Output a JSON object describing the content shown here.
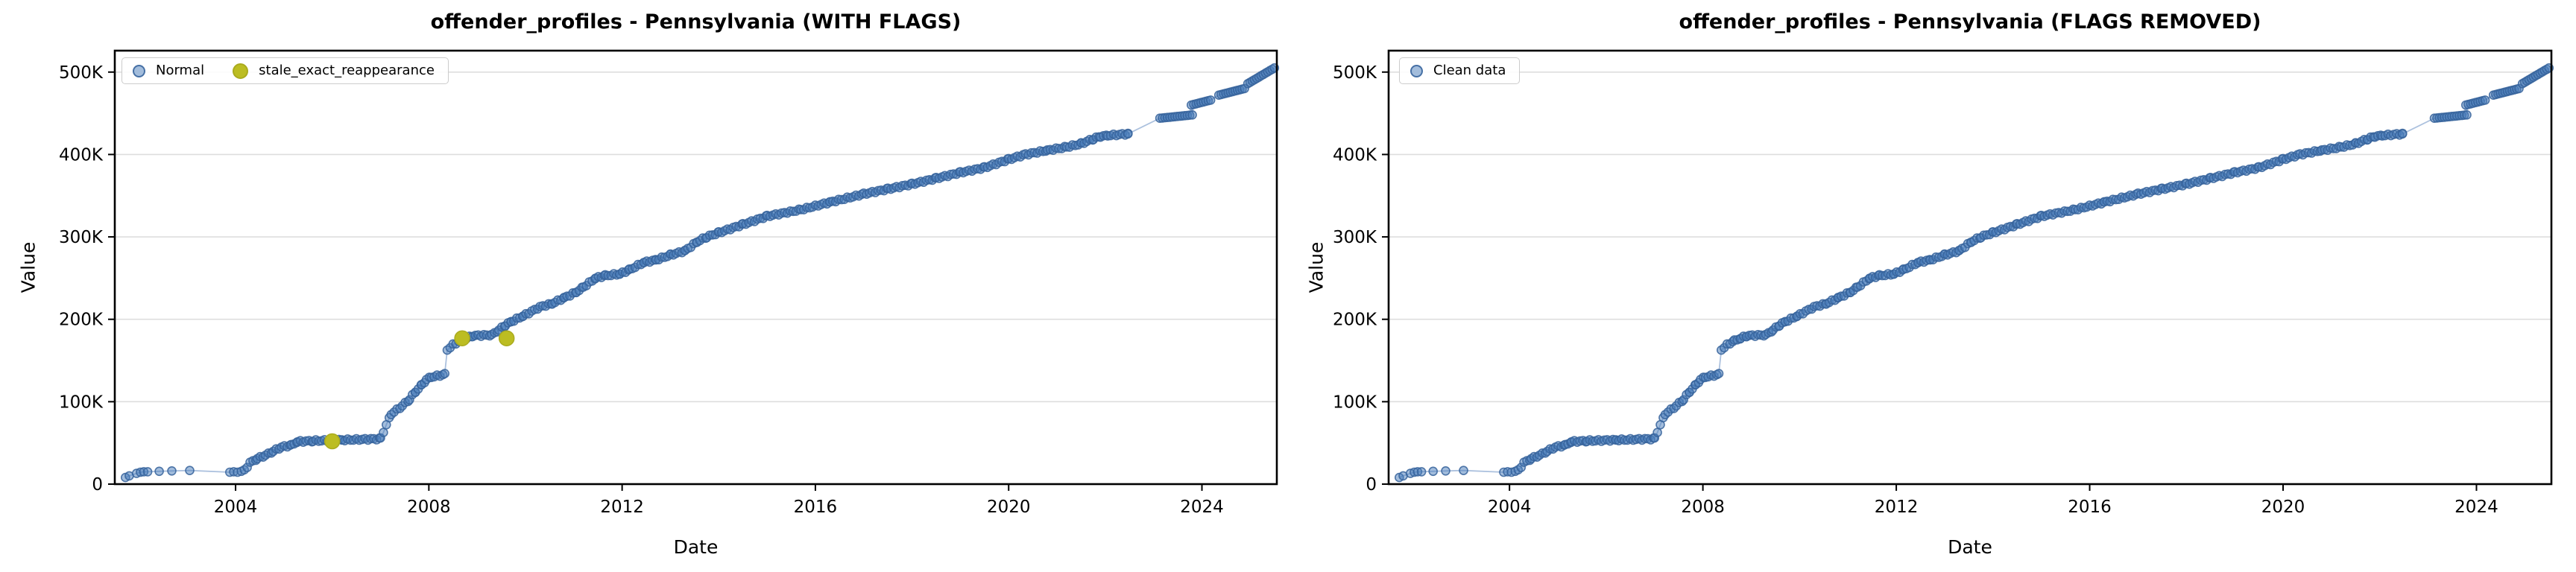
{
  "figure_title": "offender_profiles - Pennsylvania",
  "charts": [
    {
      "id": "with-flags",
      "title": "offender_profiles - Pennsylvania (WITH FLAGS)",
      "legend": [
        {
          "label": "Normal",
          "marker": "normal-blue-dot"
        },
        {
          "label": "stale_exact_reappearance",
          "marker": "flag-olive-dot"
        }
      ],
      "show_flags": true,
      "include_dip": true
    },
    {
      "id": "flags-removed",
      "title": "offender_profiles - Pennsylvania (FLAGS REMOVED)",
      "legend": [
        {
          "label": "Clean data",
          "marker": "normal-blue-dot"
        }
      ],
      "show_flags": false,
      "include_dip": false
    }
  ],
  "axis": {
    "xlabel": "Date",
    "ylabel": "Value",
    "xticks": [
      2004,
      2008,
      2012,
      2016,
      2020,
      2024
    ],
    "xtick_labels": [
      "2004",
      "2008",
      "2012",
      "2016",
      "2020",
      "2024"
    ],
    "yticks_k": [
      0,
      100,
      200,
      300,
      400,
      500
    ],
    "ytick_labels": [
      "0",
      "100K",
      "200K",
      "300K",
      "400K",
      "500K"
    ],
    "grid": "horizontal-only"
  },
  "chart_data": {
    "type": "scatter",
    "title_left": "offender_profiles - Pennsylvania (WITH FLAGS)",
    "title_right": "offender_profiles - Pennsylvania (FLAGS REMOVED)",
    "xlabel": "Date",
    "ylabel": "Value",
    "xlim_years": [
      2001.5,
      2025.55
    ],
    "ylim_k": [
      0,
      526
    ],
    "legend_position": "upper-left-inside",
    "description": "Cumulative count rising from ~8K in late 2001 to ~505K in mid 2025; values in thousands (K). Both panels share the same blue series; left panel adds 3 olive flagged points and a dip at 2009.61.",
    "series_construction": {
      "early_points_k": [
        [
          2001.72,
          8
        ],
        [
          2001.8,
          10
        ],
        [
          2001.95,
          13
        ],
        [
          2002.03,
          14.5
        ],
        [
          2002.1,
          15
        ],
        [
          2002.18,
          15
        ],
        [
          2002.42,
          15.5
        ],
        [
          2002.68,
          16
        ],
        [
          2003.05,
          16.5
        ],
        [
          2003.88,
          14.5
        ],
        [
          2003.96,
          15
        ],
        [
          2004.04,
          14.5
        ],
        [
          2004.12,
          15.5
        ]
      ],
      "dense_anchors_k": [
        [
          2004.18,
          16.5
        ],
        [
          2004.3,
          26
        ],
        [
          2004.45,
          31
        ],
        [
          2004.62,
          35
        ],
        [
          2004.78,
          40
        ],
        [
          2004.95,
          45
        ],
        [
          2005.15,
          47
        ],
        [
          2005.28,
          51.5
        ],
        [
          2005.6,
          52.5
        ],
        [
          2006.2,
          53.5
        ],
        [
          2007.0,
          55
        ],
        [
          2007.12,
          72
        ],
        [
          2007.22,
          85
        ],
        [
          2007.45,
          95
        ],
        [
          2007.6,
          103
        ],
        [
          2007.72,
          112
        ],
        [
          2007.85,
          120
        ],
        [
          2007.95,
          127
        ],
        [
          2008.05,
          130
        ],
        [
          2008.33,
          133
        ],
        [
          2008.38,
          163
        ],
        [
          2008.5,
          169
        ],
        [
          2008.65,
          174
        ],
        [
          2008.78,
          177
        ],
        [
          2008.9,
          180
        ],
        [
          2009.3,
          181
        ],
        [
          2009.45,
          187
        ],
        [
          2009.58,
          193
        ],
        [
          2009.7,
          197
        ],
        [
          2009.95,
          204
        ],
        [
          2010.3,
          215
        ],
        [
          2010.55,
          219
        ],
        [
          2010.8,
          226
        ],
        [
          2011.05,
          233
        ],
        [
          2011.2,
          239
        ],
        [
          2011.45,
          250
        ],
        [
          2011.65,
          253
        ],
        [
          2011.95,
          255
        ],
        [
          2012.15,
          260
        ],
        [
          2012.45,
          269
        ],
        [
          2012.7,
          272
        ],
        [
          2013.0,
          278
        ],
        [
          2013.3,
          283
        ],
        [
          2013.55,
          294
        ],
        [
          2013.75,
          300
        ],
        [
          2014.0,
          305
        ],
        [
          2014.5,
          315
        ],
        [
          2015.0,
          325
        ],
        [
          2015.7,
          333
        ],
        [
          2016.3,
          342
        ],
        [
          2017.0,
          352
        ],
        [
          2017.5,
          358
        ],
        [
          2018.0,
          364
        ],
        [
          2018.5,
          371
        ],
        [
          2019.0,
          378
        ],
        [
          2019.5,
          384
        ],
        [
          2020.0,
          394
        ],
        [
          2020.35,
          400
        ],
        [
          2020.8,
          405
        ],
        [
          2021.2,
          409
        ],
        [
          2021.5,
          413
        ],
        [
          2021.75,
          419
        ],
        [
          2021.9,
          422
        ],
        [
          2022.05,
          423
        ],
        [
          2022.47,
          425
        ]
      ],
      "dense_step_years": 0.06,
      "late_clusters_k": [
        {
          "x1": 2023.13,
          "x2": 2023.8,
          "v1": 444,
          "v2": 448,
          "n": 14
        },
        {
          "x1": 2023.78,
          "x2": 2024.18,
          "v1": 460,
          "v2": 466,
          "n": 9
        },
        {
          "x1": 2024.35,
          "x2": 2024.88,
          "v1": 472,
          "v2": 480,
          "n": 12
        },
        {
          "x1": 2024.95,
          "x2": 2025.5,
          "v1": 486,
          "v2": 505,
          "n": 13
        }
      ],
      "dip_point_k": [
        2009.61,
        177
      ]
    },
    "flagged_points_k": [
      [
        2006.0,
        52
      ],
      [
        2008.69,
        177
      ],
      [
        2009.61,
        177
      ]
    ]
  },
  "colors": {
    "normal_fill": "rgba(72,124,185,0.5)",
    "normal_edge": "rgba(54,99,155,0.85)",
    "normal_base_hex": "#487cb9",
    "line": "rgba(104,142,194,0.55)",
    "flag_fill": "#bcbd22",
    "flag_edge": "#aaab1e",
    "grid": "#dedede",
    "spine": "#000000",
    "tick_text": "#000000",
    "legend_border": "#cccccc",
    "background": "#ffffff"
  }
}
